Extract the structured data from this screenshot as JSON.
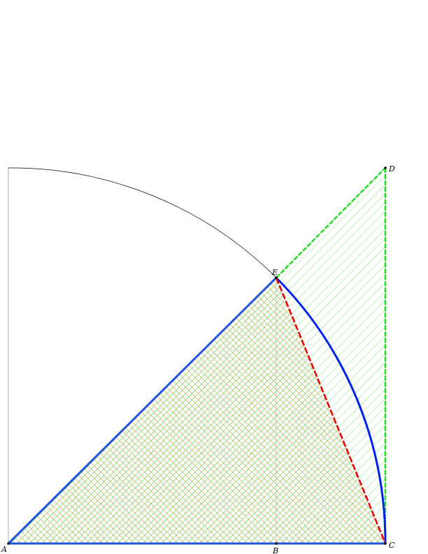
{
  "diagram": {
    "points": {
      "A": {
        "label": "A"
      },
      "B": {
        "label": "B"
      },
      "C": {
        "label": "C"
      },
      "D": {
        "label": "D"
      },
      "E": {
        "label": "E"
      }
    },
    "colors": {
      "outline_thin": "#555555",
      "arc_thin": "#000000",
      "blue": "#0022ee",
      "red": "#ee0000",
      "green": "#22dd22",
      "orange_hatch": "#f0a050",
      "green_hatch": "#55dd55"
    }
  }
}
